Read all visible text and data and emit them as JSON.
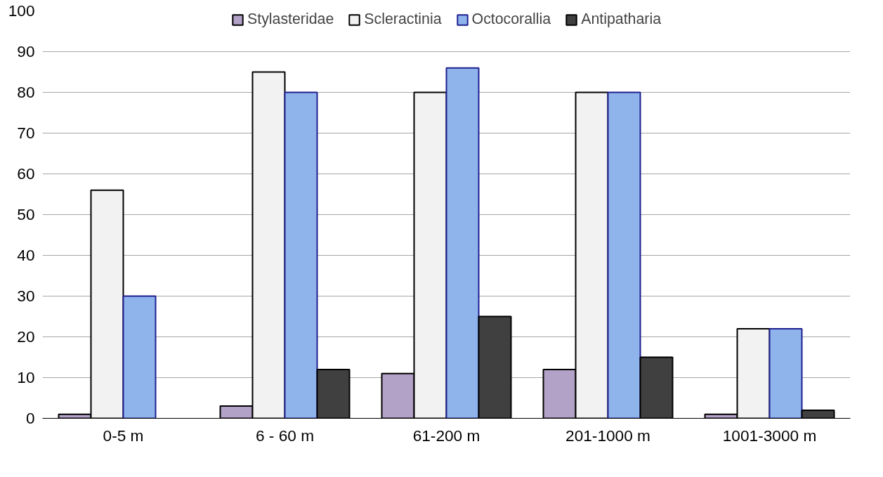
{
  "chart_data": {
    "type": "bar",
    "categories": [
      "0-5 m",
      "6 - 60 m",
      "61-200 m",
      "201-1000 m",
      "1001-3000 m"
    ],
    "series": [
      {
        "name": "Stylasteridae",
        "color": "#b3a2c7",
        "values": [
          1,
          3,
          11,
          12,
          1
        ]
      },
      {
        "name": "Scleractinia",
        "color": "#f2f2f2",
        "values": [
          56,
          85,
          80,
          80,
          22
        ]
      },
      {
        "name": "Octocorallia",
        "color": "#8fb4ec",
        "values": [
          30,
          80,
          86,
          80,
          22
        ]
      },
      {
        "name": "Antipatharia",
        "color": "#404040",
        "values": [
          null,
          12,
          25,
          15,
          2
        ]
      }
    ],
    "ylim": [
      0,
      100
    ],
    "yticks": [
      0,
      10,
      20,
      30,
      40,
      50,
      60,
      70,
      80,
      90,
      100
    ],
    "grid": "y",
    "legend": "top"
  }
}
